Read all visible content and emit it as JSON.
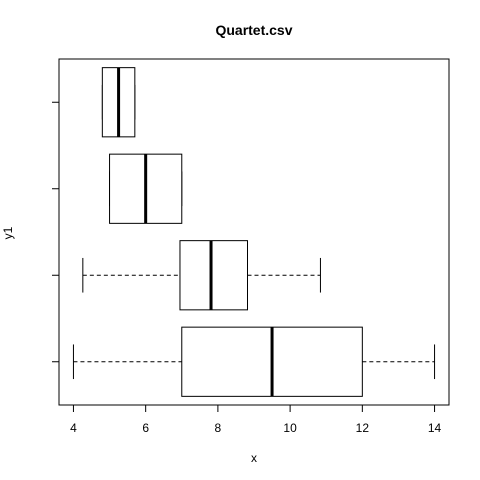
{
  "chart_data": {
    "type": "boxplot",
    "orientation": "horizontal",
    "title": "Quartet.csv",
    "xlabel": "x",
    "ylabel": "y1",
    "xlim": [
      3.6,
      14.4
    ],
    "x_ticks": [
      4,
      6,
      8,
      10,
      12,
      14
    ],
    "categories": [
      "1",
      "2",
      "3",
      "4"
    ],
    "show_category_labels": false,
    "boxes": [
      {
        "whisker_low": 4.0,
        "q1": 7.0,
        "median": 9.5,
        "q3": 12.0,
        "whisker_high": 14.0
      },
      {
        "whisker_low": 4.26,
        "q1": 6.95,
        "median": 7.81,
        "q3": 8.82,
        "whisker_high": 10.84
      },
      {
        "whisker_low": 5.0,
        "q1": 5.0,
        "median": 6.0,
        "q3": 7.0,
        "whisker_high": 7.0
      },
      {
        "whisker_low": 4.8,
        "q1": 4.8,
        "median": 5.25,
        "q3": 5.7,
        "whisker_high": 5.7
      }
    ],
    "colors": {
      "stroke": "#000000",
      "background": "#ffffff"
    },
    "grid": false
  }
}
